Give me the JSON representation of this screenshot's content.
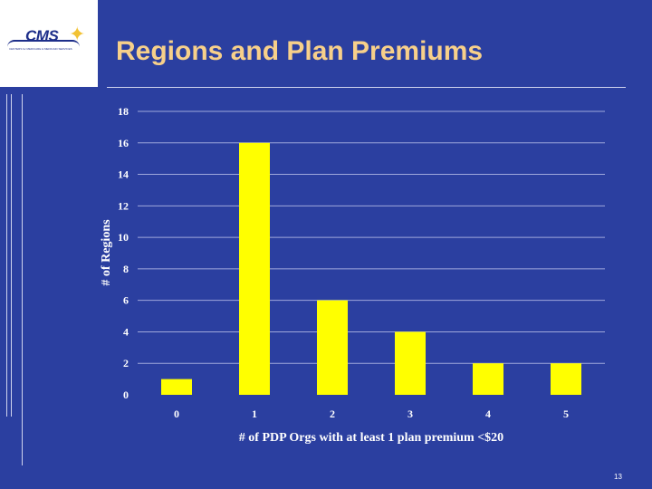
{
  "slide": {
    "title": "Regions and Plan Premiums",
    "page_number": "13",
    "logo": {
      "text": "CMS",
      "subtext": "CENTERS for MEDICARE & MEDICAID SERVICES"
    }
  },
  "colors": {
    "background": "#2b3fa0",
    "title": "#f7d08a",
    "bar_fill": "#ffff00",
    "gridline": "#9fa8dc",
    "text": "#ffffff"
  },
  "chart_data": {
    "type": "bar",
    "title": "",
    "xlabel": "# of PDP Orgs with at least 1 plan premium <$20",
    "ylabel": "# of Regions",
    "categories": [
      "0",
      "1",
      "2",
      "3",
      "4",
      "5"
    ],
    "values": [
      1,
      16,
      6,
      4,
      2,
      2
    ],
    "ylim": [
      0,
      18
    ],
    "yticks": [
      "0",
      "2",
      "4",
      "6",
      "8",
      "10",
      "12",
      "14",
      "16",
      "18"
    ],
    "grid": true,
    "legend": "none"
  }
}
